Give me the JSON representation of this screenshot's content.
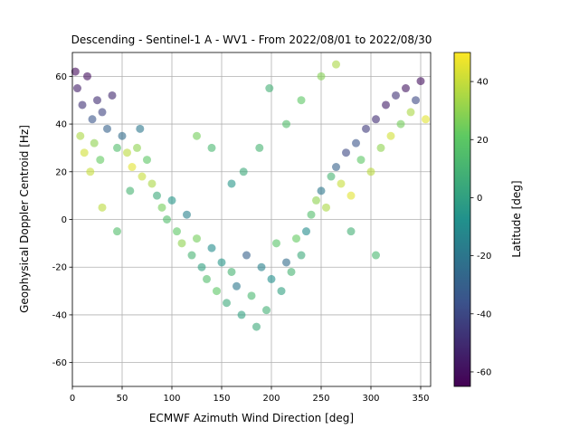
{
  "chart_data": {
    "type": "scatter",
    "title": "Descending - Sentinel-1 A - WV1 - From 2022/08/01 to 2022/08/30",
    "xlabel": "ECMWF Azimuth Wind Direction [deg]",
    "ylabel": "Geophysical Doppler Centroid [Hz]",
    "xlim": [
      0,
      360
    ],
    "ylim": [
      -70,
      70
    ],
    "xticks": [
      0,
      50,
      100,
      150,
      200,
      250,
      300,
      350
    ],
    "yticks": [
      -60,
      -40,
      -20,
      0,
      20,
      40,
      60
    ],
    "grid": true,
    "colorbar": {
      "label": "Latitude [deg]",
      "range": [
        -65,
        50
      ],
      "ticks": [
        -60,
        -40,
        -20,
        0,
        20,
        40
      ],
      "colormap": "viridis",
      "colors": [
        "#440154",
        "#3b528b",
        "#21918c",
        "#5ec962",
        "#fde725"
      ]
    },
    "series": [
      {
        "color_by": "latitude",
        "points": [
          {
            "x": 5,
            "y": 55,
            "lat": -55
          },
          {
            "x": 10,
            "y": 48,
            "lat": -48
          },
          {
            "x": 15,
            "y": 60,
            "lat": -60
          },
          {
            "x": 20,
            "y": 42,
            "lat": -35
          },
          {
            "x": 25,
            "y": 50,
            "lat": -50
          },
          {
            "x": 30,
            "y": 45,
            "lat": -42
          },
          {
            "x": 35,
            "y": 38,
            "lat": -30
          },
          {
            "x": 40,
            "y": 52,
            "lat": -52
          },
          {
            "x": 8,
            "y": 35,
            "lat": 35
          },
          {
            "x": 12,
            "y": 28,
            "lat": 42
          },
          {
            "x": 22,
            "y": 32,
            "lat": 30
          },
          {
            "x": 3,
            "y": 62,
            "lat": -62
          },
          {
            "x": 18,
            "y": 20,
            "lat": 40
          },
          {
            "x": 28,
            "y": 25,
            "lat": 22
          },
          {
            "x": 45,
            "y": 30,
            "lat": 15
          },
          {
            "x": 50,
            "y": 35,
            "lat": -25
          },
          {
            "x": 55,
            "y": 28,
            "lat": 38
          },
          {
            "x": 60,
            "y": 22,
            "lat": 45
          },
          {
            "x": 65,
            "y": 30,
            "lat": 30
          },
          {
            "x": 70,
            "y": 18,
            "lat": 40
          },
          {
            "x": 75,
            "y": 25,
            "lat": 20
          },
          {
            "x": 80,
            "y": 15,
            "lat": 35
          },
          {
            "x": 68,
            "y": 38,
            "lat": -20
          },
          {
            "x": 58,
            "y": 12,
            "lat": 10
          },
          {
            "x": 85,
            "y": 10,
            "lat": 5
          },
          {
            "x": 90,
            "y": 5,
            "lat": 25
          },
          {
            "x": 95,
            "y": 0,
            "lat": 15
          },
          {
            "x": 100,
            "y": 8,
            "lat": -5
          },
          {
            "x": 105,
            "y": -5,
            "lat": 20
          },
          {
            "x": 110,
            "y": -10,
            "lat": 30
          },
          {
            "x": 115,
            "y": 2,
            "lat": -15
          },
          {
            "x": 120,
            "y": -15,
            "lat": 10
          },
          {
            "x": 125,
            "y": -8,
            "lat": 25
          },
          {
            "x": 130,
            "y": -20,
            "lat": 0
          },
          {
            "x": 135,
            "y": -25,
            "lat": 15
          },
          {
            "x": 140,
            "y": -12,
            "lat": -10
          },
          {
            "x": 145,
            "y": -30,
            "lat": 20
          },
          {
            "x": 150,
            "y": -18,
            "lat": -5
          },
          {
            "x": 155,
            "y": -35,
            "lat": 5
          },
          {
            "x": 160,
            "y": -22,
            "lat": 10
          },
          {
            "x": 165,
            "y": -28,
            "lat": -20
          },
          {
            "x": 170,
            "y": -40,
            "lat": 0
          },
          {
            "x": 175,
            "y": -15,
            "lat": -30
          },
          {
            "x": 180,
            "y": -32,
            "lat": 12
          },
          {
            "x": 185,
            "y": -45,
            "lat": 5
          },
          {
            "x": 190,
            "y": -20,
            "lat": -15
          },
          {
            "x": 195,
            "y": -38,
            "lat": 8
          },
          {
            "x": 200,
            "y": -25,
            "lat": -8
          },
          {
            "x": 205,
            "y": -10,
            "lat": 18
          },
          {
            "x": 210,
            "y": -30,
            "lat": 0
          },
          {
            "x": 215,
            "y": -18,
            "lat": -25
          },
          {
            "x": 220,
            "y": -22,
            "lat": 10
          },
          {
            "x": 225,
            "y": -8,
            "lat": 22
          },
          {
            "x": 230,
            "y": -15,
            "lat": 5
          },
          {
            "x": 235,
            "y": -5,
            "lat": -10
          },
          {
            "x": 240,
            "y": 2,
            "lat": 15
          },
          {
            "x": 245,
            "y": 8,
            "lat": 30
          },
          {
            "x": 250,
            "y": 12,
            "lat": -20
          },
          {
            "x": 255,
            "y": 5,
            "lat": 35
          },
          {
            "x": 260,
            "y": 18,
            "lat": 10
          },
          {
            "x": 265,
            "y": 22,
            "lat": -30
          },
          {
            "x": 270,
            "y": 15,
            "lat": 40
          },
          {
            "x": 275,
            "y": 28,
            "lat": -40
          },
          {
            "x": 280,
            "y": 10,
            "lat": 45
          },
          {
            "x": 285,
            "y": 32,
            "lat": -35
          },
          {
            "x": 290,
            "y": 25,
            "lat": 20
          },
          {
            "x": 295,
            "y": 38,
            "lat": -45
          },
          {
            "x": 300,
            "y": 20,
            "lat": 38
          },
          {
            "x": 305,
            "y": 42,
            "lat": -50
          },
          {
            "x": 310,
            "y": 30,
            "lat": 30
          },
          {
            "x": 315,
            "y": 48,
            "lat": -55
          },
          {
            "x": 320,
            "y": 35,
            "lat": 42
          },
          {
            "x": 325,
            "y": 52,
            "lat": -48
          },
          {
            "x": 330,
            "y": 40,
            "lat": 25
          },
          {
            "x": 335,
            "y": 55,
            "lat": -58
          },
          {
            "x": 340,
            "y": 45,
            "lat": 35
          },
          {
            "x": 345,
            "y": 50,
            "lat": -40
          },
          {
            "x": 350,
            "y": 58,
            "lat": -60
          },
          {
            "x": 355,
            "y": 42,
            "lat": 45
          },
          {
            "x": 172,
            "y": 20,
            "lat": 5
          },
          {
            "x": 188,
            "y": 30,
            "lat": 10
          },
          {
            "x": 198,
            "y": 55,
            "lat": 8
          },
          {
            "x": 215,
            "y": 40,
            "lat": 15
          },
          {
            "x": 160,
            "y": 15,
            "lat": -5
          },
          {
            "x": 230,
            "y": 50,
            "lat": 20
          },
          {
            "x": 140,
            "y": 30,
            "lat": 12
          },
          {
            "x": 125,
            "y": 35,
            "lat": 25
          },
          {
            "x": 250,
            "y": 60,
            "lat": 28
          },
          {
            "x": 265,
            "y": 65,
            "lat": 35
          },
          {
            "x": 305,
            "y": -15,
            "lat": 12
          },
          {
            "x": 280,
            "y": -5,
            "lat": 8
          },
          {
            "x": 45,
            "y": -5,
            "lat": 15
          },
          {
            "x": 30,
            "y": 5,
            "lat": 38
          }
        ]
      }
    ]
  }
}
